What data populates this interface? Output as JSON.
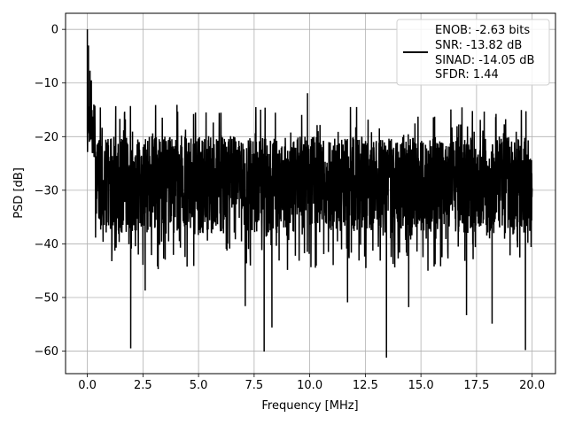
{
  "chart_data": {
    "type": "line",
    "title": "",
    "xlabel": "Frequency [MHz]",
    "ylabel": "PSD [dB]",
    "xlim": [
      -0.98,
      21.05
    ],
    "ylim": [
      -64.2,
      3.0
    ],
    "x_ticks": [
      0.0,
      2.5,
      5.0,
      7.5,
      10.0,
      12.5,
      15.0,
      17.5,
      20.0
    ],
    "x_tick_labels": [
      "0.0",
      "2.5",
      "5.0",
      "7.5",
      "10.0",
      "12.5",
      "15.0",
      "17.5",
      "20.0"
    ],
    "y_ticks": [
      0,
      -10,
      -20,
      -30,
      -40,
      -50,
      -60
    ],
    "y_tick_labels": [
      "0",
      "−10",
      "−20",
      "−30",
      "−40",
      "−50",
      "−60"
    ],
    "grid": true,
    "legend_position": "top-right",
    "series": [
      {
        "name": "ENOB: -2.63 bits\nSNR: -13.82 dB\nSINAD: -14.05 dB\nSFDR: 1.44",
        "color": "#000000",
        "x_start": 0.0,
        "x_end": 20.0,
        "noise_floor_db": -27,
        "noise_band_db": [
          -35,
          -18
        ],
        "max_db": 0.0,
        "spikes": [
          {
            "x": 0.0,
            "y": 0.0
          },
          {
            "x": 0.05,
            "y": -3.0
          },
          {
            "x": 0.12,
            "y": -7.7
          },
          {
            "x": 0.18,
            "y": -9.5
          },
          {
            "x": 1.95,
            "y": -59.5
          },
          {
            "x": 2.6,
            "y": -48.7
          },
          {
            "x": 7.1,
            "y": -51.6
          },
          {
            "x": 7.95,
            "y": -60.1
          },
          {
            "x": 8.3,
            "y": -55.6
          },
          {
            "x": 9.9,
            "y": -11.9
          },
          {
            "x": 11.7,
            "y": -50.9
          },
          {
            "x": 13.45,
            "y": -61.2
          },
          {
            "x": 14.45,
            "y": -51.8
          },
          {
            "x": 17.05,
            "y": -53.3
          },
          {
            "x": 18.2,
            "y": -54.9
          },
          {
            "x": 19.7,
            "y": -59.8
          }
        ]
      }
    ],
    "legend_lines": [
      "ENOB: -2.63 bits",
      "SNR: -13.82 dB",
      "SINAD: -14.05 dB",
      "SFDR: 1.44"
    ]
  }
}
